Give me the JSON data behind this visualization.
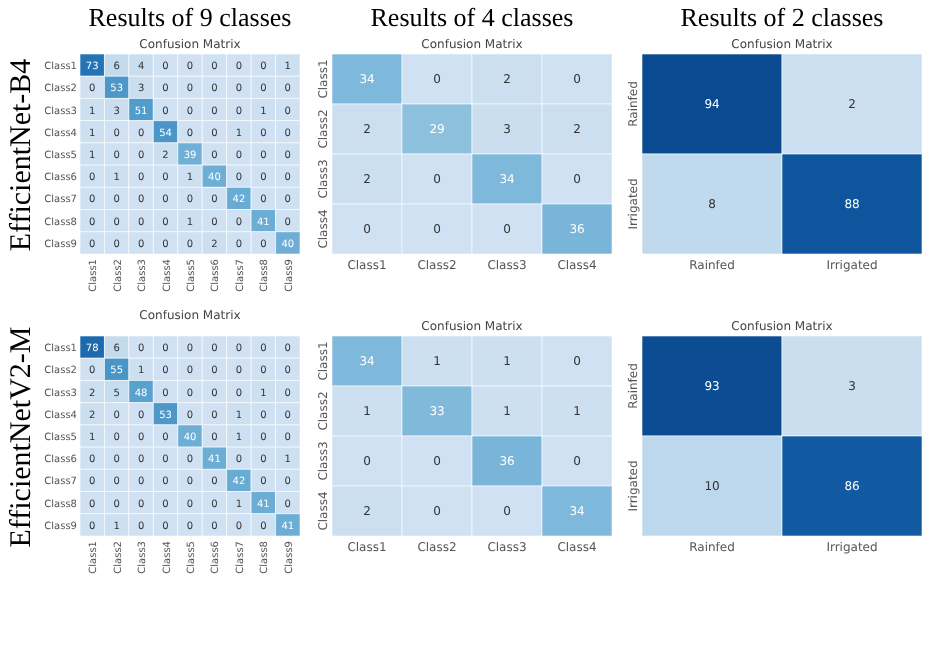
{
  "chart_data": [
    {
      "type": "heatmap",
      "title": "Results of 9 classes",
      "subtitle": "Confusion Matrix",
      "ylabel": "EfficientNet-B4",
      "data_labels": true,
      "categories": [
        "Class1",
        "Class2",
        "Class3",
        "Class4",
        "Class5",
        "Class6",
        "Class7",
        "Class8",
        "Class9"
      ],
      "y_categories": [
        "Class1",
        "Class2",
        "Class3",
        "Class4",
        "Class5",
        "Class6",
        "Class7",
        "Class8",
        "Class9"
      ],
      "cells": [
        [
          73,
          6,
          4,
          0,
          0,
          0,
          0,
          0,
          1
        ],
        [
          0,
          53,
          3,
          0,
          0,
          0,
          0,
          0,
          0
        ],
        [
          1,
          3,
          51,
          0,
          0,
          0,
          0,
          1,
          0
        ],
        [
          1,
          0,
          0,
          54,
          0,
          0,
          1,
          0,
          0
        ],
        [
          1,
          0,
          0,
          2,
          39,
          0,
          0,
          0,
          0
        ],
        [
          0,
          1,
          0,
          0,
          1,
          40,
          0,
          0,
          0
        ],
        [
          0,
          0,
          0,
          0,
          0,
          0,
          42,
          0,
          0
        ],
        [
          0,
          0,
          0,
          0,
          1,
          0,
          0,
          41,
          0
        ],
        [
          0,
          0,
          0,
          0,
          0,
          2,
          0,
          0,
          40
        ]
      ]
    },
    {
      "type": "heatmap",
      "title": "Results of 4 classes",
      "subtitle": "Confusion Matrix",
      "data_labels": true,
      "categories": [
        "Class1",
        "Class2",
        "Class3",
        "Class4"
      ],
      "y_categories": [
        "Class1",
        "Class2",
        "Class3",
        "Class4"
      ],
      "cells": [
        [
          34,
          0,
          2,
          0
        ],
        [
          2,
          29,
          3,
          2
        ],
        [
          2,
          0,
          34,
          0
        ],
        [
          0,
          0,
          0,
          36
        ]
      ]
    },
    {
      "type": "heatmap",
      "title": "Results of 2 classes",
      "subtitle": "Confusion Matrix",
      "data_labels": true,
      "categories": [
        "Rainfed",
        "Irrigated"
      ],
      "y_categories": [
        "Rainfed",
        "Irrigated"
      ],
      "cells": [
        [
          94,
          2
        ],
        [
          8,
          88
        ]
      ]
    },
    {
      "type": "heatmap",
      "title": "Confusion Matrix",
      "ylabel": "EfficientNetV2-M",
      "data_labels": true,
      "categories": [
        "Class1",
        "Class2",
        "Class3",
        "Class4",
        "Class5",
        "Class6",
        "Class7",
        "Class8",
        "Class9"
      ],
      "y_categories": [
        "Class1",
        "Class2",
        "Class3",
        "Class4",
        "Class5",
        "Class6",
        "Class7",
        "Class8",
        "Class9"
      ],
      "cells": [
        [
          78,
          6,
          0,
          0,
          0,
          0,
          0,
          0,
          0
        ],
        [
          0,
          55,
          1,
          0,
          0,
          0,
          0,
          0,
          0
        ],
        [
          2,
          5,
          48,
          0,
          0,
          0,
          0,
          1,
          0
        ],
        [
          2,
          0,
          0,
          53,
          0,
          0,
          1,
          0,
          0
        ],
        [
          1,
          0,
          0,
          0,
          40,
          0,
          1,
          0,
          0
        ],
        [
          0,
          0,
          0,
          0,
          0,
          41,
          0,
          0,
          1
        ],
        [
          0,
          0,
          0,
          0,
          0,
          0,
          42,
          0,
          0
        ],
        [
          0,
          0,
          0,
          0,
          0,
          0,
          1,
          41,
          0
        ],
        [
          0,
          1,
          0,
          0,
          0,
          0,
          0,
          0,
          41
        ]
      ]
    },
    {
      "type": "heatmap",
      "title": "Confusion Matrix",
      "data_labels": true,
      "categories": [
        "Class1",
        "Class2",
        "Class3",
        "Class4"
      ],
      "y_categories": [
        "Class1",
        "Class2",
        "Class3",
        "Class4"
      ],
      "cells": [
        [
          34,
          1,
          1,
          0
        ],
        [
          1,
          33,
          1,
          1
        ],
        [
          0,
          0,
          36,
          0
        ],
        [
          2,
          0,
          0,
          34
        ]
      ]
    },
    {
      "type": "heatmap",
      "title": "Confusion Matrix",
      "data_labels": true,
      "categories": [
        "Rainfed",
        "Irrigated"
      ],
      "y_categories": [
        "Rainfed",
        "Irrigated"
      ],
      "cells": [
        [
          93,
          3
        ],
        [
          10,
          86
        ]
      ]
    }
  ]
}
